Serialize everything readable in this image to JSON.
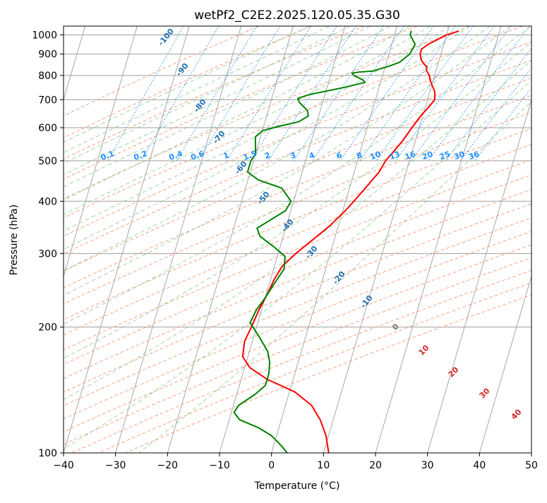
{
  "chart_data": {
    "type": "line",
    "subtype": "skew-t log-p diagram",
    "title": "wetPf2_C2E2.2025.120.05.35.G30",
    "xlabel": "Temperature (°C)",
    "ylabel": "Pressure (hPa)",
    "xlim": [
      -40,
      50
    ],
    "ylim": [
      1050,
      100
    ],
    "yscale": "log",
    "grid": true,
    "x_ticks": [
      -40,
      -30,
      -20,
      -10,
      0,
      10,
      20,
      30,
      40,
      50
    ],
    "y_ticks": [
      100,
      200,
      300,
      400,
      500,
      600,
      700,
      800,
      900,
      1000
    ],
    "series": [
      {
        "color": "#ff0000",
        "points": [
          [
            1020,
            12.0
          ],
          [
            1000,
            10.0
          ],
          [
            950,
            7.0
          ],
          [
            925,
            6.0
          ],
          [
            900,
            6.0
          ],
          [
            870,
            6.6
          ],
          [
            850,
            7.4
          ],
          [
            840,
            8.0
          ],
          [
            820,
            8.2
          ],
          [
            800,
            9.0
          ],
          [
            780,
            9.4
          ],
          [
            760,
            10.0
          ],
          [
            730,
            11.0
          ],
          [
            700,
            11.4
          ],
          [
            670,
            10.6
          ],
          [
            640,
            9.6
          ],
          [
            600,
            8.6
          ],
          [
            560,
            7.6
          ],
          [
            520,
            6.2
          ],
          [
            500,
            5.4
          ],
          [
            470,
            4.8
          ],
          [
            440,
            3.5
          ],
          [
            400,
            1.6
          ],
          [
            380,
            0.5
          ],
          [
            350,
            -1.6
          ],
          [
            320,
            -4.5
          ],
          [
            300,
            -6.6
          ],
          [
            280,
            -8.5
          ],
          [
            260,
            -9.3
          ],
          [
            240,
            -9.8
          ],
          [
            220,
            -10.5
          ],
          [
            200,
            -11.0
          ],
          [
            185,
            -11.5
          ],
          [
            170,
            -11.0
          ],
          [
            160,
            -9.0
          ],
          [
            150,
            -5.0
          ],
          [
            140,
            1.0
          ],
          [
            130,
            5.0
          ],
          [
            120,
            7.5
          ],
          [
            110,
            9.5
          ],
          [
            100,
            11.0
          ]
        ]
      },
      {
        "color": "#008000",
        "points": [
          [
            1020,
            3.0
          ],
          [
            1000,
            3.0
          ],
          [
            950,
            4.5
          ],
          [
            920,
            4.2
          ],
          [
            900,
            4.0
          ],
          [
            860,
            2.5
          ],
          [
            840,
            0.5
          ],
          [
            825,
            -1.5
          ],
          [
            820,
            -2.0
          ],
          [
            815,
            -4.8
          ],
          [
            810,
            -6.0
          ],
          [
            800,
            -5.5
          ],
          [
            780,
            -3.5
          ],
          [
            770,
            -3.0
          ],
          [
            750,
            -6.5
          ],
          [
            720,
            -13.0
          ],
          [
            705,
            -15.0
          ],
          [
            690,
            -14.5
          ],
          [
            660,
            -12.5
          ],
          [
            640,
            -12.0
          ],
          [
            620,
            -13.5
          ],
          [
            605,
            -17.0
          ],
          [
            590,
            -20.0
          ],
          [
            570,
            -21.0
          ],
          [
            545,
            -20.5
          ],
          [
            520,
            -20.0
          ],
          [
            500,
            -20.5
          ],
          [
            470,
            -20.5
          ],
          [
            450,
            -18.0
          ],
          [
            430,
            -13.0
          ],
          [
            400,
            -10.5
          ],
          [
            380,
            -11.0
          ],
          [
            360,
            -13.5
          ],
          [
            345,
            -15.5
          ],
          [
            330,
            -14.5
          ],
          [
            310,
            -11.0
          ],
          [
            295,
            -8.5
          ],
          [
            275,
            -8.0
          ],
          [
            255,
            -9.0
          ],
          [
            235,
            -10.0
          ],
          [
            220,
            -11.0
          ],
          [
            205,
            -11.5
          ],
          [
            190,
            -9.0
          ],
          [
            175,
            -6.5
          ],
          [
            165,
            -5.5
          ],
          [
            155,
            -5.0
          ],
          [
            145,
            -5.0
          ],
          [
            138,
            -6.5
          ],
          [
            130,
            -9.0
          ],
          [
            125,
            -9.5
          ],
          [
            120,
            -8.0
          ],
          [
            115,
            -4.0
          ],
          [
            110,
            -1.0
          ],
          [
            104,
            1.5
          ],
          [
            100,
            3.0
          ]
        ]
      }
    ],
    "dry_adiabat_labels": [
      "-100",
      "-90",
      "-80",
      "-70",
      "-60",
      "-50",
      "-40",
      "-30",
      "-20",
      "-10"
    ],
    "moist_adiabat_labels": [
      "0",
      "10",
      "20",
      "30",
      "40"
    ],
    "mixing_ratio_labels": [
      "0.1",
      "0.2",
      "0.4",
      "0.6",
      "1",
      "1.5",
      "2",
      "3",
      "4",
      "6",
      "8",
      "10",
      "13",
      "16",
      "20",
      "25",
      "30",
      "36"
    ],
    "colors": {
      "temperature": "#ff0000",
      "dewpoint": "#008000",
      "isotherm": "#9e9e9e",
      "dry_adiabat": "#f4a582",
      "moist_adiabat": "#7fbf7f",
      "mixing_ratio": "#1e90ff",
      "isobar": "#9e9e9e"
    }
  }
}
